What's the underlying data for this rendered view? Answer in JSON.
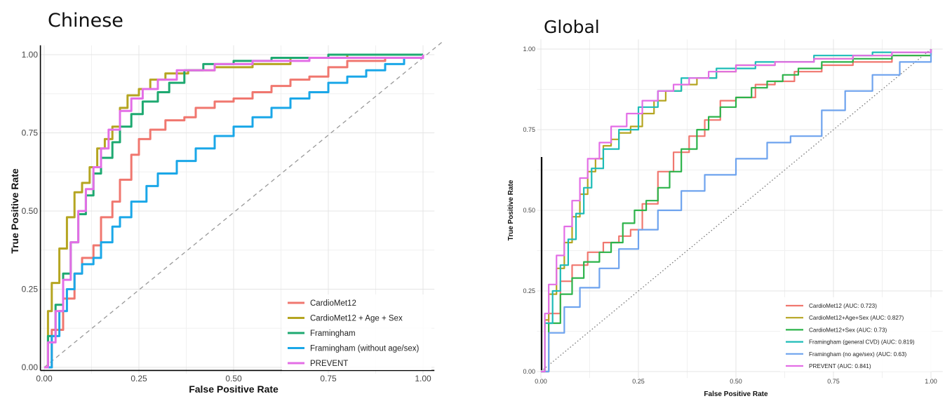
{
  "chart_data": [
    {
      "type": "line",
      "title": "Chinese",
      "xlabel": "False Positive Rate",
      "ylabel": "True Positive Rate",
      "xlim": [
        0,
        1
      ],
      "ylim": [
        0,
        1
      ],
      "ticks": [
        "0.00",
        "0.25",
        "0.50",
        "0.75",
        "1.00"
      ],
      "grid": true,
      "legend_position": "bottom-right",
      "series": [
        {
          "name": "CardioMet12",
          "color": "#f0776f",
          "points": [
            [
              0,
              0
            ],
            [
              0.02,
              0.12
            ],
            [
              0.05,
              0.22
            ],
            [
              0.08,
              0.3
            ],
            [
              0.1,
              0.35
            ],
            [
              0.13,
              0.39
            ],
            [
              0.15,
              0.48
            ],
            [
              0.18,
              0.53
            ],
            [
              0.2,
              0.6
            ],
            [
              0.23,
              0.68
            ],
            [
              0.25,
              0.73
            ],
            [
              0.28,
              0.76
            ],
            [
              0.32,
              0.79
            ],
            [
              0.37,
              0.8
            ],
            [
              0.4,
              0.83
            ],
            [
              0.45,
              0.85
            ],
            [
              0.5,
              0.86
            ],
            [
              0.55,
              0.88
            ],
            [
              0.6,
              0.9
            ],
            [
              0.65,
              0.92
            ],
            [
              0.7,
              0.93
            ],
            [
              0.75,
              0.96
            ],
            [
              0.8,
              0.98
            ],
            [
              0.9,
              0.99
            ],
            [
              1,
              1
            ]
          ]
        },
        {
          "name": "CardioMet12 + Age + Sex",
          "color": "#b5a521",
          "points": [
            [
              0,
              0
            ],
            [
              0.01,
              0.18
            ],
            [
              0.02,
              0.27
            ],
            [
              0.04,
              0.38
            ],
            [
              0.06,
              0.48
            ],
            [
              0.08,
              0.56
            ],
            [
              0.1,
              0.59
            ],
            [
              0.12,
              0.64
            ],
            [
              0.14,
              0.7
            ],
            [
              0.16,
              0.73
            ],
            [
              0.18,
              0.77
            ],
            [
              0.2,
              0.83
            ],
            [
              0.22,
              0.87
            ],
            [
              0.25,
              0.89
            ],
            [
              0.28,
              0.92
            ],
            [
              0.32,
              0.94
            ],
            [
              0.38,
              0.95
            ],
            [
              0.45,
              0.96
            ],
            [
              0.55,
              0.97
            ],
            [
              0.65,
              0.99
            ],
            [
              0.8,
              1.0
            ],
            [
              1,
              1
            ]
          ]
        },
        {
          "name": "Framingham",
          "color": "#1ea971",
          "points": [
            [
              0,
              0
            ],
            [
              0.01,
              0.1
            ],
            [
              0.03,
              0.2
            ],
            [
              0.05,
              0.3
            ],
            [
              0.07,
              0.4
            ],
            [
              0.09,
              0.49
            ],
            [
              0.11,
              0.55
            ],
            [
              0.13,
              0.62
            ],
            [
              0.15,
              0.67
            ],
            [
              0.18,
              0.72
            ],
            [
              0.2,
              0.77
            ],
            [
              0.23,
              0.81
            ],
            [
              0.26,
              0.85
            ],
            [
              0.3,
              0.88
            ],
            [
              0.33,
              0.91
            ],
            [
              0.37,
              0.95
            ],
            [
              0.42,
              0.97
            ],
            [
              0.5,
              0.98
            ],
            [
              0.6,
              0.99
            ],
            [
              0.75,
              1.0
            ],
            [
              1,
              1
            ]
          ]
        },
        {
          "name": "Framingham (without age/sex)",
          "color": "#1aa7e8",
          "points": [
            [
              0,
              0
            ],
            [
              0.02,
              0.1
            ],
            [
              0.04,
              0.18
            ],
            [
              0.06,
              0.25
            ],
            [
              0.08,
              0.3
            ],
            [
              0.1,
              0.33
            ],
            [
              0.13,
              0.35
            ],
            [
              0.15,
              0.4
            ],
            [
              0.18,
              0.45
            ],
            [
              0.2,
              0.48
            ],
            [
              0.23,
              0.53
            ],
            [
              0.27,
              0.58
            ],
            [
              0.3,
              0.62
            ],
            [
              0.35,
              0.66
            ],
            [
              0.4,
              0.7
            ],
            [
              0.45,
              0.74
            ],
            [
              0.5,
              0.77
            ],
            [
              0.55,
              0.8
            ],
            [
              0.6,
              0.83
            ],
            [
              0.65,
              0.86
            ],
            [
              0.7,
              0.88
            ],
            [
              0.75,
              0.91
            ],
            [
              0.8,
              0.93
            ],
            [
              0.85,
              0.95
            ],
            [
              0.9,
              0.97
            ],
            [
              0.95,
              0.99
            ],
            [
              1,
              1
            ]
          ]
        },
        {
          "name": "PREVENT",
          "color": "#e36ee6",
          "points": [
            [
              0,
              0
            ],
            [
              0.01,
              0.08
            ],
            [
              0.03,
              0.18
            ],
            [
              0.05,
              0.28
            ],
            [
              0.07,
              0.4
            ],
            [
              0.09,
              0.5
            ],
            [
              0.11,
              0.57
            ],
            [
              0.13,
              0.64
            ],
            [
              0.15,
              0.7
            ],
            [
              0.17,
              0.76
            ],
            [
              0.2,
              0.82
            ],
            [
              0.23,
              0.86
            ],
            [
              0.26,
              0.89
            ],
            [
              0.3,
              0.92
            ],
            [
              0.35,
              0.95
            ],
            [
              0.45,
              0.97
            ],
            [
              0.55,
              0.98
            ],
            [
              0.7,
              0.99
            ],
            [
              1,
              1
            ]
          ]
        }
      ]
    },
    {
      "type": "line",
      "title": "Global",
      "xlabel": "False Positive Rate",
      "ylabel": "True Positive Rate",
      "xlim": [
        0,
        1
      ],
      "ylim": [
        0,
        1
      ],
      "ticks": [
        "0.00",
        "0.25",
        "0.50",
        "0.75",
        "1.00"
      ],
      "grid": true,
      "legend_position": "bottom-right",
      "series": [
        {
          "name": "CardioMet12 (AUC: 0.723)",
          "color": "#f0776f",
          "points": [
            [
              0,
              0
            ],
            [
              0.02,
              0.18
            ],
            [
              0.05,
              0.28
            ],
            [
              0.08,
              0.33
            ],
            [
              0.12,
              0.37
            ],
            [
              0.16,
              0.4
            ],
            [
              0.2,
              0.42
            ],
            [
              0.23,
              0.44
            ],
            [
              0.26,
              0.52
            ],
            [
              0.3,
              0.62
            ],
            [
              0.34,
              0.68
            ],
            [
              0.38,
              0.73
            ],
            [
              0.42,
              0.78
            ],
            [
              0.46,
              0.84
            ],
            [
              0.5,
              0.85
            ],
            [
              0.55,
              0.89
            ],
            [
              0.6,
              0.9
            ],
            [
              0.65,
              0.93
            ],
            [
              0.72,
              0.95
            ],
            [
              0.8,
              0.96
            ],
            [
              0.9,
              0.98
            ],
            [
              1,
              1
            ]
          ]
        },
        {
          "name": "CardioMet12+Age+Sex (AUC: 0.827)",
          "color": "#b5a521",
          "points": [
            [
              0,
              0
            ],
            [
              0.01,
              0.16
            ],
            [
              0.02,
              0.24
            ],
            [
              0.04,
              0.32
            ],
            [
              0.06,
              0.4
            ],
            [
              0.08,
              0.48
            ],
            [
              0.1,
              0.55
            ],
            [
              0.12,
              0.62
            ],
            [
              0.14,
              0.66
            ],
            [
              0.16,
              0.7
            ],
            [
              0.18,
              0.72
            ],
            [
              0.2,
              0.74
            ],
            [
              0.23,
              0.76
            ],
            [
              0.26,
              0.8
            ],
            [
              0.29,
              0.84
            ],
            [
              0.32,
              0.87
            ],
            [
              0.36,
              0.89
            ],
            [
              0.4,
              0.91
            ],
            [
              0.45,
              0.93
            ],
            [
              0.5,
              0.95
            ],
            [
              0.6,
              0.96
            ],
            [
              0.7,
              0.97
            ],
            [
              0.8,
              0.98
            ],
            [
              0.9,
              0.99
            ],
            [
              1,
              1
            ]
          ]
        },
        {
          "name": "CardioMet12+Sex (AUC: 0.73)",
          "color": "#2cb34a",
          "points": [
            [
              0,
              0
            ],
            [
              0.02,
              0.15
            ],
            [
              0.05,
              0.24
            ],
            [
              0.08,
              0.29
            ],
            [
              0.11,
              0.34
            ],
            [
              0.15,
              0.37
            ],
            [
              0.18,
              0.4
            ],
            [
              0.21,
              0.46
            ],
            [
              0.24,
              0.5
            ],
            [
              0.27,
              0.53
            ],
            [
              0.3,
              0.57
            ],
            [
              0.33,
              0.62
            ],
            [
              0.36,
              0.69
            ],
            [
              0.4,
              0.75
            ],
            [
              0.43,
              0.79
            ],
            [
              0.46,
              0.82
            ],
            [
              0.5,
              0.85
            ],
            [
              0.54,
              0.88
            ],
            [
              0.58,
              0.9
            ],
            [
              0.62,
              0.92
            ],
            [
              0.66,
              0.94
            ],
            [
              0.72,
              0.96
            ],
            [
              0.8,
              0.97
            ],
            [
              0.9,
              0.98
            ],
            [
              1,
              1
            ]
          ]
        },
        {
          "name": "Framingham (general CVD) (AUC: 0.819)",
          "color": "#1dbcb7",
          "points": [
            [
              0,
              0
            ],
            [
              0.01,
              0.15
            ],
            [
              0.03,
              0.25
            ],
            [
              0.05,
              0.33
            ],
            [
              0.07,
              0.41
            ],
            [
              0.09,
              0.49
            ],
            [
              0.11,
              0.57
            ],
            [
              0.13,
              0.63
            ],
            [
              0.16,
              0.69
            ],
            [
              0.2,
              0.75
            ],
            [
              0.25,
              0.82
            ],
            [
              0.3,
              0.87
            ],
            [
              0.36,
              0.91
            ],
            [
              0.45,
              0.94
            ],
            [
              0.55,
              0.96
            ],
            [
              0.7,
              0.98
            ],
            [
              0.85,
              0.99
            ],
            [
              1,
              1
            ]
          ]
        },
        {
          "name": "Framingham (no age/sex) (AUC: 0.63)",
          "color": "#6ea3ee",
          "points": [
            [
              0,
              0
            ],
            [
              0.02,
              0.12
            ],
            [
              0.06,
              0.2
            ],
            [
              0.1,
              0.26
            ],
            [
              0.15,
              0.32
            ],
            [
              0.2,
              0.38
            ],
            [
              0.25,
              0.44
            ],
            [
              0.3,
              0.5
            ],
            [
              0.36,
              0.56
            ],
            [
              0.42,
              0.61
            ],
            [
              0.5,
              0.66
            ],
            [
              0.58,
              0.71
            ],
            [
              0.64,
              0.73
            ],
            [
              0.72,
              0.81
            ],
            [
              0.78,
              0.87
            ],
            [
              0.85,
              0.92
            ],
            [
              0.92,
              0.96
            ],
            [
              1,
              1
            ]
          ]
        },
        {
          "name": "PREVENT (AUC: 0.841)",
          "color": "#e36ee6",
          "points": [
            [
              0,
              0
            ],
            [
              0.01,
              0.18
            ],
            [
              0.02,
              0.27
            ],
            [
              0.04,
              0.36
            ],
            [
              0.06,
              0.45
            ],
            [
              0.08,
              0.53
            ],
            [
              0.1,
              0.6
            ],
            [
              0.12,
              0.66
            ],
            [
              0.15,
              0.71
            ],
            [
              0.18,
              0.76
            ],
            [
              0.22,
              0.8
            ],
            [
              0.26,
              0.84
            ],
            [
              0.3,
              0.87
            ],
            [
              0.34,
              0.89
            ],
            [
              0.38,
              0.91
            ],
            [
              0.43,
              0.93
            ],
            [
              0.5,
              0.95
            ],
            [
              0.6,
              0.96
            ],
            [
              0.7,
              0.97
            ],
            [
              0.8,
              0.98
            ],
            [
              0.9,
              0.99
            ],
            [
              1,
              1
            ]
          ]
        }
      ]
    }
  ]
}
